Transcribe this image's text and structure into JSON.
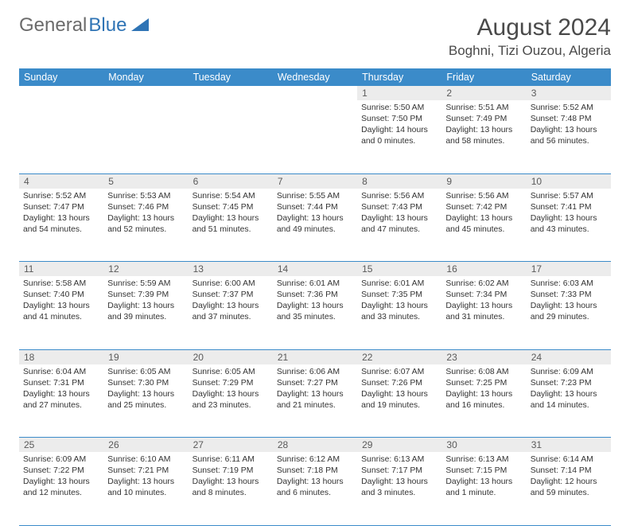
{
  "logo": {
    "text1": "General",
    "text2": "Blue"
  },
  "title": "August 2024",
  "location": "Boghni, Tizi Ouzou, Algeria",
  "colors": {
    "header_bg": "#3b8bc9",
    "header_text": "#ffffff",
    "daynum_bg": "#ececec",
    "border": "#3b8bc9",
    "logo_gray": "#6b6b6b",
    "logo_blue": "#2f74b5"
  },
  "daysOfWeek": [
    "Sunday",
    "Monday",
    "Tuesday",
    "Wednesday",
    "Thursday",
    "Friday",
    "Saturday"
  ],
  "weeks": [
    [
      null,
      null,
      null,
      null,
      {
        "n": "1",
        "sunrise": "5:50 AM",
        "sunset": "7:50 PM",
        "daylight": "14 hours and 0 minutes."
      },
      {
        "n": "2",
        "sunrise": "5:51 AM",
        "sunset": "7:49 PM",
        "daylight": "13 hours and 58 minutes."
      },
      {
        "n": "3",
        "sunrise": "5:52 AM",
        "sunset": "7:48 PM",
        "daylight": "13 hours and 56 minutes."
      }
    ],
    [
      {
        "n": "4",
        "sunrise": "5:52 AM",
        "sunset": "7:47 PM",
        "daylight": "13 hours and 54 minutes."
      },
      {
        "n": "5",
        "sunrise": "5:53 AM",
        "sunset": "7:46 PM",
        "daylight": "13 hours and 52 minutes."
      },
      {
        "n": "6",
        "sunrise": "5:54 AM",
        "sunset": "7:45 PM",
        "daylight": "13 hours and 51 minutes."
      },
      {
        "n": "7",
        "sunrise": "5:55 AM",
        "sunset": "7:44 PM",
        "daylight": "13 hours and 49 minutes."
      },
      {
        "n": "8",
        "sunrise": "5:56 AM",
        "sunset": "7:43 PM",
        "daylight": "13 hours and 47 minutes."
      },
      {
        "n": "9",
        "sunrise": "5:56 AM",
        "sunset": "7:42 PM",
        "daylight": "13 hours and 45 minutes."
      },
      {
        "n": "10",
        "sunrise": "5:57 AM",
        "sunset": "7:41 PM",
        "daylight": "13 hours and 43 minutes."
      }
    ],
    [
      {
        "n": "11",
        "sunrise": "5:58 AM",
        "sunset": "7:40 PM",
        "daylight": "13 hours and 41 minutes."
      },
      {
        "n": "12",
        "sunrise": "5:59 AM",
        "sunset": "7:39 PM",
        "daylight": "13 hours and 39 minutes."
      },
      {
        "n": "13",
        "sunrise": "6:00 AM",
        "sunset": "7:37 PM",
        "daylight": "13 hours and 37 minutes."
      },
      {
        "n": "14",
        "sunrise": "6:01 AM",
        "sunset": "7:36 PM",
        "daylight": "13 hours and 35 minutes."
      },
      {
        "n": "15",
        "sunrise": "6:01 AM",
        "sunset": "7:35 PM",
        "daylight": "13 hours and 33 minutes."
      },
      {
        "n": "16",
        "sunrise": "6:02 AM",
        "sunset": "7:34 PM",
        "daylight": "13 hours and 31 minutes."
      },
      {
        "n": "17",
        "sunrise": "6:03 AM",
        "sunset": "7:33 PM",
        "daylight": "13 hours and 29 minutes."
      }
    ],
    [
      {
        "n": "18",
        "sunrise": "6:04 AM",
        "sunset": "7:31 PM",
        "daylight": "13 hours and 27 minutes."
      },
      {
        "n": "19",
        "sunrise": "6:05 AM",
        "sunset": "7:30 PM",
        "daylight": "13 hours and 25 minutes."
      },
      {
        "n": "20",
        "sunrise": "6:05 AM",
        "sunset": "7:29 PM",
        "daylight": "13 hours and 23 minutes."
      },
      {
        "n": "21",
        "sunrise": "6:06 AM",
        "sunset": "7:27 PM",
        "daylight": "13 hours and 21 minutes."
      },
      {
        "n": "22",
        "sunrise": "6:07 AM",
        "sunset": "7:26 PM",
        "daylight": "13 hours and 19 minutes."
      },
      {
        "n": "23",
        "sunrise": "6:08 AM",
        "sunset": "7:25 PM",
        "daylight": "13 hours and 16 minutes."
      },
      {
        "n": "24",
        "sunrise": "6:09 AM",
        "sunset": "7:23 PM",
        "daylight": "13 hours and 14 minutes."
      }
    ],
    [
      {
        "n": "25",
        "sunrise": "6:09 AM",
        "sunset": "7:22 PM",
        "daylight": "13 hours and 12 minutes."
      },
      {
        "n": "26",
        "sunrise": "6:10 AM",
        "sunset": "7:21 PM",
        "daylight": "13 hours and 10 minutes."
      },
      {
        "n": "27",
        "sunrise": "6:11 AM",
        "sunset": "7:19 PM",
        "daylight": "13 hours and 8 minutes."
      },
      {
        "n": "28",
        "sunrise": "6:12 AM",
        "sunset": "7:18 PM",
        "daylight": "13 hours and 6 minutes."
      },
      {
        "n": "29",
        "sunrise": "6:13 AM",
        "sunset": "7:17 PM",
        "daylight": "13 hours and 3 minutes."
      },
      {
        "n": "30",
        "sunrise": "6:13 AM",
        "sunset": "7:15 PM",
        "daylight": "13 hours and 1 minute."
      },
      {
        "n": "31",
        "sunrise": "6:14 AM",
        "sunset": "7:14 PM",
        "daylight": "12 hours and 59 minutes."
      }
    ]
  ],
  "labels": {
    "sunrise": "Sunrise:",
    "sunset": "Sunset:",
    "daylight": "Daylight:"
  }
}
